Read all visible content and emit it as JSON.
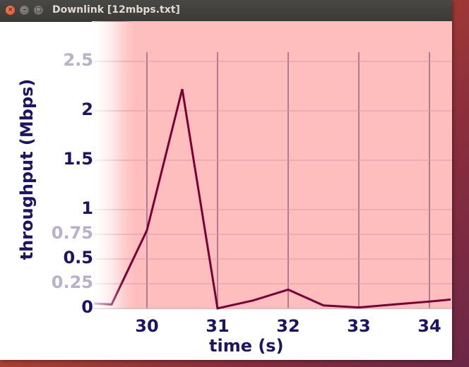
{
  "window": {
    "title": "Downlink [12mbps.txt]",
    "buttons": {
      "close": "×",
      "minimize": "–",
      "maximize": "□"
    }
  },
  "colors": {
    "plot_background": "#ffbebe",
    "line": "#7a0035",
    "text": "#1c1464",
    "grid": "#9a6a84"
  },
  "chart_data": {
    "type": "line",
    "xlabel": "time (s)",
    "ylabel": "throughput (Mbps)",
    "xlim": [
      29.25,
      34.3
    ],
    "ylim": [
      0,
      2.6
    ],
    "x_ticks": [
      "30",
      "31",
      "32",
      "33",
      "34"
    ],
    "y_ticks": [
      "0",
      "0.25",
      "0.5",
      "0.75",
      "1",
      "1.5",
      "2",
      "2.5"
    ],
    "y_ticks_faded": [
      "0.25",
      "0.75",
      "2.5"
    ],
    "series": [
      {
        "x": [
          29.25,
          29.5,
          30.0,
          30.5,
          31.0,
          31.5,
          32.0,
          32.5,
          33.0,
          33.5,
          34.0,
          34.3
        ],
        "values": [
          0.05,
          0.04,
          0.79,
          2.22,
          0.0,
          0.08,
          0.19,
          0.03,
          0.01,
          0.04,
          0.07,
          0.09
        ]
      }
    ]
  }
}
